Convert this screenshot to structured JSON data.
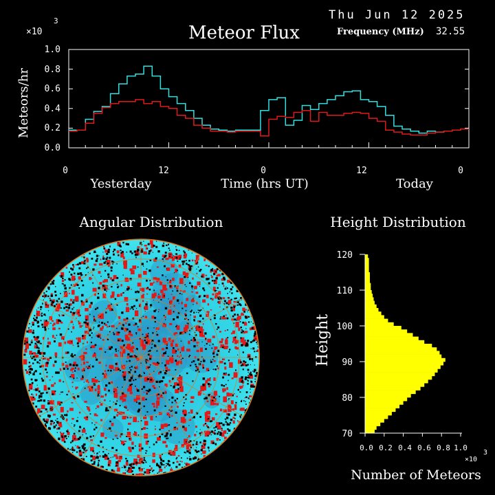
{
  "header": {
    "date": "Thu Jun 12 2025",
    "title": "Meteor Flux",
    "frequency_label": "Frequency (MHz)",
    "frequency_value": "32.55",
    "y_multiplier": "×10",
    "y_exponent": "3"
  },
  "flux": {
    "ylabel": "Meteors/hr",
    "xlabel_left": "Yesterday",
    "xlabel_center": "Time (hrs UT)",
    "xlabel_right": "Today",
    "ytick_labels": [
      "0.0",
      "0.2",
      "0.4",
      "0.6",
      "0.8",
      "1.0"
    ],
    "xtick_labels": [
      "0",
      "12",
      "0",
      "12",
      "0"
    ]
  },
  "angular": {
    "title": "Angular Distribution"
  },
  "height": {
    "title": "Height Distribution",
    "ylabel": "Height",
    "xlabel": "Number of Meteors",
    "x_multiplier": "×10",
    "x_exponent": "3",
    "ytick_labels": [
      "120",
      "110",
      "100",
      "90",
      "80",
      "70"
    ],
    "xtick_labels": [
      "0.0",
      "0.2",
      "0.4",
      "0.6",
      "0.8",
      "1.0"
    ]
  },
  "colors": {
    "background": "#000000",
    "cyan": "#33e0e0",
    "red": "#e01a1a",
    "yellow": "#ffff00",
    "orange": "#e07820"
  },
  "chart_data": [
    {
      "type": "line",
      "title": "Meteor Flux",
      "xlabel": "Time (hrs UT)",
      "ylabel": "Meteors/hr",
      "ylim": [
        0,
        1.0
      ],
      "y_scale_note": "x10^3",
      "x": [
        0,
        1,
        2,
        3,
        4,
        5,
        6,
        7,
        8,
        9,
        10,
        11,
        12,
        13,
        14,
        15,
        16,
        17,
        18,
        19,
        20,
        21,
        22,
        23,
        24,
        25,
        26,
        27,
        28,
        29,
        30,
        31,
        32,
        33,
        34,
        35,
        36,
        37,
        38,
        39,
        40,
        41,
        42,
        43,
        44,
        45,
        46,
        47
      ],
      "series": [
        {
          "color": "cyan",
          "values": [
            0.18,
            0.18,
            0.29,
            0.37,
            0.42,
            0.55,
            0.65,
            0.73,
            0.75,
            0.83,
            0.73,
            0.6,
            0.52,
            0.45,
            0.38,
            0.3,
            0.23,
            0.19,
            0.18,
            0.17,
            0.18,
            0.18,
            0.18,
            0.38,
            0.49,
            0.51,
            0.23,
            0.28,
            0.43,
            0.39,
            0.45,
            0.49,
            0.53,
            0.57,
            0.58,
            0.49,
            0.47,
            0.42,
            0.33,
            0.22,
            0.19,
            0.17,
            0.15,
            0.17,
            0.16,
            0.17,
            0.18,
            0.19
          ]
        },
        {
          "color": "red",
          "values": [
            0.17,
            0.18,
            0.25,
            0.35,
            0.41,
            0.45,
            0.47,
            0.47,
            0.49,
            0.45,
            0.47,
            0.42,
            0.4,
            0.33,
            0.3,
            0.23,
            0.2,
            0.17,
            0.17,
            0.16,
            0.17,
            0.17,
            0.17,
            0.12,
            0.29,
            0.32,
            0.31,
            0.36,
            0.38,
            0.27,
            0.36,
            0.33,
            0.33,
            0.35,
            0.36,
            0.35,
            0.3,
            0.27,
            0.18,
            0.16,
            0.14,
            0.13,
            0.13,
            0.15,
            0.16,
            0.17,
            0.18,
            0.19
          ]
        }
      ]
    },
    {
      "type": "bar",
      "title": "Height Distribution",
      "orientation": "horizontal",
      "xlabel": "Number of Meteors",
      "ylabel": "Height",
      "xlim": [
        0,
        1.0
      ],
      "ylim": [
        70,
        120
      ],
      "x_scale_note": "x10^3",
      "categories": [
        70,
        71,
        72,
        73,
        74,
        75,
        76,
        77,
        78,
        79,
        80,
        81,
        82,
        83,
        84,
        85,
        86,
        87,
        88,
        89,
        90,
        91,
        92,
        93,
        94,
        95,
        96,
        97,
        98,
        99,
        100,
        101,
        102,
        103,
        104,
        105,
        106,
        107,
        108,
        109,
        110,
        111,
        112,
        113,
        114,
        115,
        116,
        117,
        118,
        119
      ],
      "values": [
        0.1,
        0.12,
        0.16,
        0.2,
        0.24,
        0.28,
        0.32,
        0.36,
        0.4,
        0.44,
        0.48,
        0.53,
        0.58,
        0.62,
        0.66,
        0.7,
        0.73,
        0.76,
        0.79,
        0.82,
        0.84,
        0.8,
        0.78,
        0.75,
        0.7,
        0.62,
        0.56,
        0.5,
        0.44,
        0.38,
        0.3,
        0.24,
        0.2,
        0.17,
        0.14,
        0.12,
        0.1,
        0.09,
        0.08,
        0.07,
        0.06,
        0.06,
        0.05,
        0.05,
        0.05,
        0.04,
        0.04,
        0.04,
        0.04,
        0.03
      ]
    }
  ]
}
